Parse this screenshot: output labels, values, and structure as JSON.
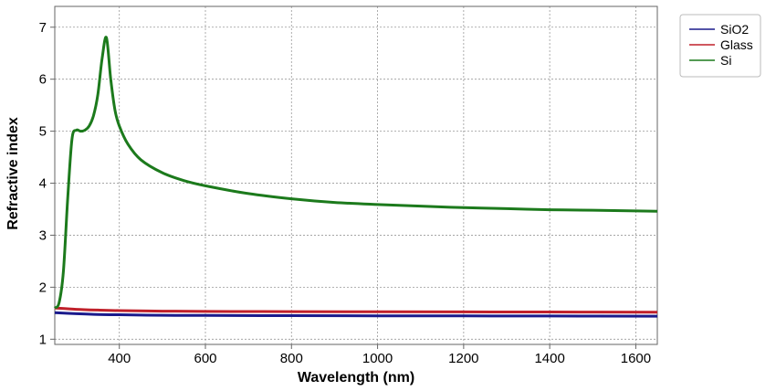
{
  "chart_data": {
    "type": "line",
    "xlabel": "Wavelength (nm)",
    "ylabel": "Refractive index",
    "xlim": [
      250,
      1650
    ],
    "ylim": [
      0.9,
      7.4
    ],
    "xticks": [
      400,
      600,
      800,
      1000,
      1200,
      1400,
      1600
    ],
    "yticks": [
      1,
      2,
      3,
      4,
      5,
      6,
      7
    ],
    "grid": true,
    "legend_position": "top-right",
    "series": [
      {
        "name": "SiO2",
        "color": "#1a1a8c",
        "x": [
          250,
          300,
          350,
          400,
          500,
          600,
          800,
          1000,
          1200,
          1400,
          1650
        ],
        "y": [
          1.51,
          1.49,
          1.475,
          1.47,
          1.46,
          1.457,
          1.453,
          1.45,
          1.448,
          1.446,
          1.443
        ]
      },
      {
        "name": "Glass",
        "color": "#c0202a",
        "x": [
          250,
          300,
          350,
          400,
          500,
          600,
          800,
          1000,
          1200,
          1400,
          1650
        ],
        "y": [
          1.6,
          1.575,
          1.56,
          1.55,
          1.54,
          1.535,
          1.53,
          1.527,
          1.525,
          1.523,
          1.52
        ]
      },
      {
        "name": "Si",
        "color": "#1c7a1c",
        "x": [
          250,
          260,
          270,
          280,
          290,
          300,
          310,
          320,
          330,
          340,
          350,
          360,
          370,
          380,
          390,
          400,
          420,
          450,
          500,
          550,
          600,
          700,
          800,
          900,
          1000,
          1100,
          1200,
          1300,
          1400,
          1500,
          1650
        ],
        "y": [
          1.6,
          1.7,
          2.3,
          3.7,
          4.85,
          5.02,
          5.0,
          5.02,
          5.1,
          5.3,
          5.7,
          6.4,
          6.8,
          6.0,
          5.4,
          5.1,
          4.75,
          4.45,
          4.2,
          4.05,
          3.95,
          3.8,
          3.7,
          3.63,
          3.59,
          3.56,
          3.53,
          3.51,
          3.49,
          3.48,
          3.46
        ]
      }
    ]
  }
}
